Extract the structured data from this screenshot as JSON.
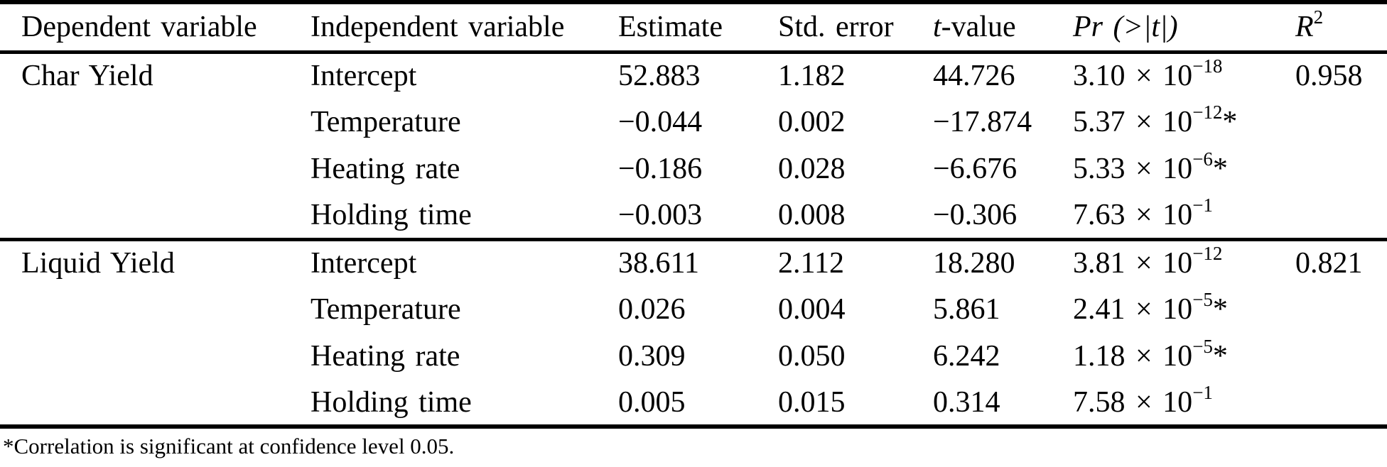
{
  "page": {
    "background_color": "#ffffff",
    "text_color": "#000000"
  },
  "table": {
    "header": {
      "dependent": "Dependent variable",
      "independent": "Independent variable",
      "estimate": "Estimate",
      "std_error": "Std. error",
      "t_italic": "t",
      "t_rest": "-value",
      "pr": "Pr (>|t|)",
      "r_italic": "R",
      "r_sup": "2"
    },
    "rows": [
      {
        "dependent": "Char Yield",
        "independent": "Intercept",
        "estimate": "52.883",
        "std_error": "1.182",
        "t_value": "44.726",
        "pr_base": "3.10 × 10",
        "pr_exp": "−18",
        "pr_star": "",
        "r2": "0.958"
      },
      {
        "dependent": "",
        "independent": "Temperature",
        "estimate": "−0.044",
        "std_error": "0.002",
        "t_value": "−17.874",
        "pr_base": "5.37 × 10",
        "pr_exp": "−12",
        "pr_star": "*",
        "r2": ""
      },
      {
        "dependent": "",
        "independent": "Heating rate",
        "estimate": "−0.186",
        "std_error": "0.028",
        "t_value": "−6.676",
        "pr_base": "5.33 × 10",
        "pr_exp": "−6",
        "pr_star": "*",
        "r2": ""
      },
      {
        "dependent": "",
        "independent": "Holding time",
        "estimate": "−0.003",
        "std_error": "0.008",
        "t_value": "−0.306",
        "pr_base": "7.63 × 10",
        "pr_exp": "−1",
        "pr_star": "",
        "r2": ""
      },
      {
        "dependent": "Liquid Yield",
        "independent": "Intercept",
        "estimate": "38.611",
        "std_error": "2.112",
        "t_value": "18.280",
        "pr_base": "3.81 × 10",
        "pr_exp": "−12",
        "pr_star": "",
        "r2": "0.821"
      },
      {
        "dependent": "",
        "independent": "Temperature",
        "estimate": "0.026",
        "std_error": "0.004",
        "t_value": "5.861",
        "pr_base": "2.41 × 10",
        "pr_exp": "−5",
        "pr_star": "*",
        "r2": ""
      },
      {
        "dependent": "",
        "independent": "Heating rate",
        "estimate": "0.309",
        "std_error": "0.050",
        "t_value": "6.242",
        "pr_base": "1.18 × 10",
        "pr_exp": "−5",
        "pr_star": "*",
        "r2": ""
      },
      {
        "dependent": "",
        "independent": "Holding time",
        "estimate": "0.005",
        "std_error": "0.015",
        "t_value": "0.314",
        "pr_base": "7.58 × 10",
        "pr_exp": "−1",
        "pr_star": "",
        "r2": ""
      }
    ],
    "footnote": "*Correlation is significant at confidence level 0.05."
  }
}
